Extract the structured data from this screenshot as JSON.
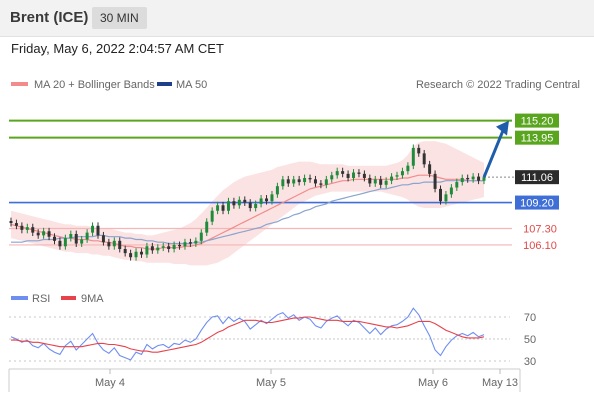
{
  "header": {
    "title": "Brent (ICE)",
    "timeframe": "30 MIN"
  },
  "timestamp": "Friday, May 6, 2022 2:04:57 AM CET",
  "credit": "Research © 2022 Trading Central",
  "legend": {
    "ma20": "MA 20 + Bollinger Bands",
    "ma50": "MA 50",
    "rsi": "RSI",
    "ma9": "9MA"
  },
  "colors": {
    "up": "#1e8c3a",
    "down": "#333333",
    "ma20": "#f28b8b",
    "ma50": "#8aa4cf",
    "band": "#fadada",
    "resistance": "#5aa51e",
    "support": "#3f6fd6",
    "target": "#f4b6b6",
    "arrow": "#1f5dab",
    "rsi": "#6f8ff0",
    "rsi_ma": "#e8424b"
  },
  "chart_data": [
    {
      "type": "candlestick",
      "title": "Brent (ICE)",
      "timeframe": "30 MIN",
      "x_tick_labels": [
        "May 4",
        "May 5",
        "May 6",
        "May 13"
      ],
      "ylim": [
        102.8,
        117.0
      ],
      "levels": [
        {
          "value": 115.2,
          "label": "115.20",
          "kind": "resistance"
        },
        {
          "value": 113.95,
          "label": "113.95",
          "kind": "resistance"
        },
        {
          "value": 111.06,
          "label": "111.06",
          "kind": "last"
        },
        {
          "value": 109.2,
          "label": "109.20",
          "kind": "support"
        },
        {
          "value": 107.3,
          "label": "107.30",
          "kind": "target"
        },
        {
          "value": 106.1,
          "label": "106.10",
          "kind": "target"
        }
      ],
      "projection": {
        "from": 111.06,
        "to": 115.2
      },
      "close": [
        107.7,
        107.5,
        107.2,
        107.4,
        107.0,
        106.8,
        107.1,
        106.7,
        106.4,
        106.0,
        106.6,
        106.9,
        106.2,
        106.5,
        107.0,
        107.5,
        106.8,
        106.3,
        106.0,
        106.4,
        105.8,
        105.5,
        105.2,
        105.6,
        105.4,
        106.0,
        105.7,
        105.9,
        106.0,
        105.8,
        106.1,
        106.0,
        106.3,
        106.2,
        106.4,
        107.0,
        107.8,
        108.6,
        109.0,
        108.6,
        109.3,
        109.0,
        109.4,
        109.2,
        108.8,
        109.1,
        109.5,
        109.3,
        109.8,
        110.4,
        110.9,
        110.6,
        110.9,
        110.7,
        111.0,
        110.9,
        110.6,
        110.5,
        110.9,
        111.2,
        111.5,
        111.3,
        111.0,
        111.4,
        111.3,
        111.0,
        110.6,
        110.9,
        110.5,
        110.8,
        111.1,
        111.2,
        111.5,
        111.9,
        113.2,
        112.8,
        112.0,
        111.3,
        110.2,
        109.3,
        109.8,
        110.3,
        110.7,
        111.0,
        110.9,
        111.1,
        110.8,
        111.06
      ],
      "ma20": [
        107.6,
        107.5,
        107.4,
        107.3,
        107.2,
        107.1,
        107.0,
        106.9,
        106.8,
        106.7,
        106.6,
        106.6,
        106.5,
        106.5,
        106.5,
        106.4,
        106.4,
        106.3,
        106.3,
        106.2,
        106.1,
        106.0,
        106.0,
        105.9,
        105.9,
        105.8,
        105.8,
        105.8,
        105.9,
        105.9,
        105.9,
        105.9,
        106.0,
        106.0,
        106.1,
        106.2,
        106.4,
        106.6,
        106.8,
        107.0,
        107.2,
        107.4,
        107.6,
        107.8,
        108.0,
        108.2,
        108.4,
        108.6,
        108.8,
        109.0,
        109.2,
        109.4,
        109.6,
        109.8,
        110.0,
        110.2,
        110.3,
        110.4,
        110.5,
        110.6,
        110.7,
        110.8,
        110.8,
        110.9,
        110.9,
        110.9,
        110.9,
        110.9,
        110.9,
        110.9,
        110.9,
        110.9,
        111.0,
        111.0,
        111.1,
        111.2,
        111.2,
        111.2,
        111.1,
        111.0,
        110.9,
        110.9,
        110.9,
        110.9,
        110.8,
        110.8,
        110.8,
        110.8
      ],
      "ma50": [
        106.3,
        106.3,
        106.3,
        106.4,
        106.4,
        106.4,
        106.5,
        106.5,
        106.5,
        106.6,
        106.6,
        106.6,
        106.7,
        106.7,
        106.7,
        106.7,
        106.8,
        106.8,
        106.7,
        106.7,
        106.7,
        106.6,
        106.6,
        106.5,
        106.5,
        106.4,
        106.4,
        106.3,
        106.3,
        106.2,
        106.2,
        106.2,
        106.2,
        106.2,
        106.3,
        106.3,
        106.4,
        106.5,
        106.6,
        106.7,
        106.8,
        106.9,
        107.0,
        107.1,
        107.2,
        107.3,
        107.4,
        107.6,
        107.7,
        107.8,
        108.0,
        108.1,
        108.3,
        108.4,
        108.6,
        108.7,
        108.9,
        109.0,
        109.1,
        109.3,
        109.4,
        109.5,
        109.6,
        109.7,
        109.8,
        109.9,
        110.0,
        110.1,
        110.2,
        110.2,
        110.3,
        110.4,
        110.5,
        110.5,
        110.6,
        110.6,
        110.7,
        110.7,
        110.7,
        110.7,
        110.8,
        110.8,
        110.8,
        110.8,
        110.8,
        110.8,
        110.8,
        110.8
      ],
      "bb_upper": [
        108.6,
        108.5,
        108.4,
        108.3,
        108.2,
        108.1,
        108.0,
        107.9,
        107.8,
        107.7,
        107.6,
        107.6,
        107.5,
        107.5,
        107.5,
        107.4,
        107.4,
        107.3,
        107.3,
        107.2,
        107.1,
        107.0,
        107.0,
        106.9,
        106.9,
        106.8,
        106.8,
        106.9,
        107.0,
        107.1,
        107.2,
        107.3,
        107.5,
        107.7,
        108.0,
        108.4,
        108.8,
        109.3,
        109.7,
        110.1,
        110.4,
        110.7,
        110.9,
        111.1,
        111.2,
        111.3,
        111.4,
        111.5,
        111.6,
        111.8,
        111.9,
        112.0,
        112.1,
        112.2,
        112.2,
        112.2,
        112.1,
        112.0,
        112.0,
        112.0,
        112.0,
        112.0,
        111.9,
        111.9,
        111.9,
        111.9,
        111.9,
        111.9,
        111.9,
        111.9,
        112.0,
        112.1,
        112.3,
        112.7,
        113.3,
        113.6,
        113.7,
        113.7,
        113.7,
        113.6,
        113.5,
        113.3,
        113.1,
        112.9,
        112.7,
        112.5,
        112.3,
        112.1
      ],
      "bb_lower": [
        106.6,
        106.5,
        106.4,
        106.3,
        106.2,
        106.1,
        106.0,
        105.9,
        105.8,
        105.7,
        105.6,
        105.6,
        105.5,
        105.5,
        105.5,
        105.4,
        105.4,
        105.3,
        105.3,
        105.2,
        105.1,
        105.0,
        105.0,
        104.9,
        104.9,
        104.8,
        104.8,
        104.8,
        104.8,
        104.8,
        104.7,
        104.7,
        104.7,
        104.6,
        104.6,
        104.6,
        104.6,
        104.7,
        104.8,
        105.0,
        105.2,
        105.5,
        105.8,
        106.1,
        106.4,
        106.7,
        107.0,
        107.3,
        107.6,
        107.9,
        108.2,
        108.5,
        108.8,
        109.1,
        109.3,
        109.5,
        109.7,
        109.8,
        109.9,
        110.0,
        110.0,
        110.0,
        110.0,
        110.0,
        110.0,
        110.0,
        110.0,
        110.0,
        110.0,
        109.9,
        109.8,
        109.7,
        109.6,
        109.4,
        109.1,
        108.9,
        108.8,
        108.8,
        108.8,
        108.8,
        108.9,
        109.0,
        109.1,
        109.2,
        109.3,
        109.4,
        109.5,
        109.6
      ]
    },
    {
      "type": "line",
      "title": "RSI",
      "yticks": [
        30,
        50,
        70
      ],
      "ylim": [
        20,
        80
      ],
      "series": [
        {
          "name": "RSI",
          "values": [
            52,
            50,
            47,
            49,
            44,
            42,
            46,
            41,
            38,
            36,
            44,
            48,
            40,
            45,
            50,
            55,
            46,
            40,
            37,
            42,
            35,
            33,
            31,
            38,
            36,
            45,
            41,
            44,
            45,
            42,
            46,
            45,
            49,
            47,
            50,
            58,
            65,
            70,
            71,
            64,
            70,
            66,
            69,
            66,
            59,
            63,
            67,
            64,
            68,
            72,
            74,
            69,
            72,
            67,
            70,
            68,
            62,
            60,
            66,
            69,
            71,
            66,
            62,
            67,
            65,
            60,
            55,
            60,
            54,
            59,
            62,
            63,
            66,
            70,
            78,
            72,
            62,
            53,
            40,
            35,
            43,
            49,
            53,
            55,
            53,
            56,
            52,
            54
          ]
        },
        {
          "name": "9MA",
          "values": [
            49,
            49,
            48,
            48,
            47,
            47,
            46,
            45,
            44,
            43,
            43,
            43,
            43,
            43,
            44,
            45,
            46,
            46,
            45,
            45,
            44,
            43,
            41,
            40,
            39,
            39,
            38,
            38,
            39,
            40,
            41,
            42,
            43,
            44,
            45,
            47,
            50,
            53,
            56,
            58,
            61,
            63,
            65,
            67,
            67,
            67,
            66,
            65,
            65,
            66,
            67,
            68,
            69,
            69,
            70,
            70,
            69,
            68,
            67,
            67,
            67,
            66,
            66,
            66,
            66,
            65,
            64,
            63,
            62,
            61,
            61,
            60,
            61,
            62,
            64,
            66,
            66,
            66,
            64,
            61,
            58,
            56,
            54,
            52,
            51,
            51,
            51,
            52
          ]
        }
      ]
    }
  ]
}
